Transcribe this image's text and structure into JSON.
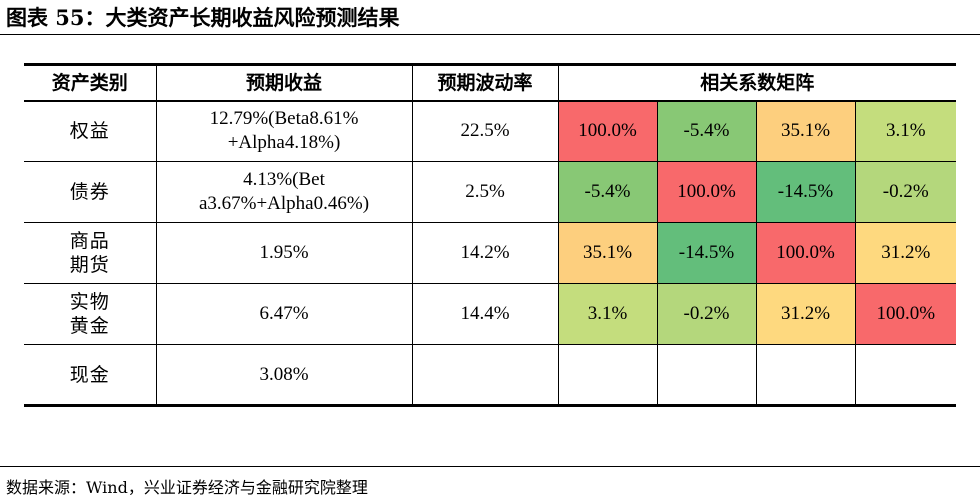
{
  "title": "图表 55：大类资产长期收益风险预测结果",
  "headers": [
    "资产类别",
    "预期收益",
    "预期波动率",
    "相关系数矩阵"
  ],
  "rows": [
    {
      "asset": "权益",
      "return": "12.79%(Beta8.61%+Alpha4.18%)",
      "vol": "22.5%",
      "corr": [
        "100.0%",
        "-5.4%",
        "35.1%",
        "3.1%"
      ]
    },
    {
      "asset": "债券",
      "return": "4.13%(Beta3.67%+Alpha0.46%)",
      "vol": "2.5%",
      "corr": [
        "-5.4%",
        "100.0%",
        "-14.5%",
        "-0.2%"
      ]
    },
    {
      "asset": "商品期货",
      "return": "1.95%",
      "vol": "14.2%",
      "corr": [
        "35.1%",
        "-14.5%",
        "100.0%",
        "31.2%"
      ]
    },
    {
      "asset": "实物黄金",
      "return": "6.47%",
      "vol": "14.4%",
      "corr": [
        "3.1%",
        "-0.2%",
        "31.2%",
        "100.0%"
      ]
    },
    {
      "asset": "现金",
      "return": "3.08%",
      "vol": "",
      "corr": [
        "",
        "",
        "",
        ""
      ]
    }
  ],
  "heat_colors": {
    "100.0%": "#f8696b",
    "-5.4%": "#88c875",
    "35.1%": "#fdcf7e",
    "3.1%": "#c4dd7d",
    "-14.5%": "#63be7b",
    "-0.2%": "#b4d77c",
    "31.2%": "#fed97f"
  },
  "source": "数据来源：Wind，兴业证券经济与金融研究院整理"
}
